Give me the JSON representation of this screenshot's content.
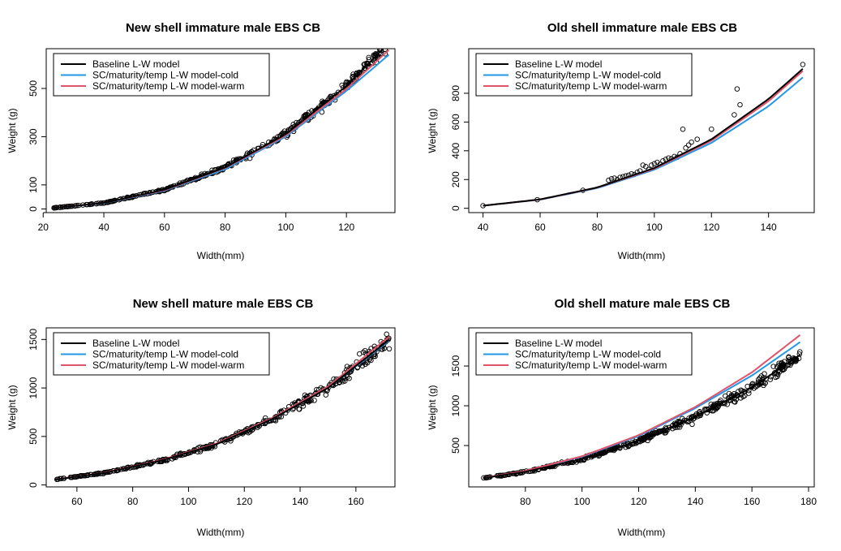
{
  "colors": {
    "baseline": "#000000",
    "cold": "#2297e6",
    "warm": "#df536b",
    "points": "#000000"
  },
  "chart_data": [
    {
      "type": "scatter",
      "title": "New shell immature male EBS CB",
      "xlabel": "Width(mm)",
      "ylabel": "Weight (g)",
      "xlim": [
        21,
        136
      ],
      "ylim": [
        -15,
        665
      ],
      "x_ticks": [
        20,
        40,
        60,
        80,
        100,
        120
      ],
      "y_ticks": [
        0,
        100,
        300,
        500
      ],
      "legend_position": "top-left",
      "series": [
        {
          "name": "Baseline L-W model",
          "color": "#000000",
          "x": [
            23,
            40,
            60,
            80,
            100,
            120,
            134
          ],
          "y": [
            4,
            25,
            80,
            172,
            310,
            510,
            690
          ]
        },
        {
          "name": "SC/maturity/temp L-W model-cold",
          "color": "#2297e6",
          "x": [
            23,
            40,
            60,
            80,
            100,
            120,
            134
          ],
          "y": [
            4,
            24,
            76,
            165,
            300,
            490,
            640
          ]
        },
        {
          "name": "SC/maturity/temp L-W model-warm",
          "color": "#df536b",
          "x": [
            23,
            40,
            60,
            80,
            100,
            120,
            134
          ],
          "y": [
            4,
            25,
            78,
            170,
            305,
            498,
            660
          ]
        }
      ],
      "points": {
        "xmin": 23,
        "xmax": 133,
        "n": 380,
        "scatter": 0.09
      }
    },
    {
      "type": "scatter",
      "title": "Old shell immature male EBS CB",
      "xlabel": "Width(mm)",
      "ylabel": "Weight (g)",
      "xlim": [
        35,
        156
      ],
      "ylim": [
        -30,
        1110
      ],
      "x_ticks": [
        40,
        60,
        80,
        100,
        120,
        140
      ],
      "y_ticks": [
        0,
        200,
        400,
        600,
        800
      ],
      "legend_position": "top-left",
      "series": [
        {
          "name": "Baseline L-W model",
          "color": "#000000",
          "x": [
            40,
            60,
            80,
            100,
            120,
            140,
            152
          ],
          "y": [
            18,
            62,
            145,
            280,
            480,
            760,
            970
          ]
        },
        {
          "name": "SC/maturity/temp L-W model-cold",
          "color": "#2297e6",
          "x": [
            40,
            60,
            80,
            100,
            120,
            140,
            152
          ],
          "y": [
            18,
            60,
            140,
            268,
            455,
            710,
            910
          ]
        },
        {
          "name": "SC/maturity/temp L-W model-warm",
          "color": "#df536b",
          "x": [
            40,
            60,
            80,
            100,
            120,
            140,
            152
          ],
          "y": [
            18,
            61,
            143,
            275,
            470,
            745,
            955
          ]
        }
      ],
      "points": {
        "x": [
          40,
          59,
          75,
          84,
          85,
          86,
          87,
          88,
          89,
          90,
          91,
          92,
          93,
          94,
          95,
          96,
          97,
          98,
          99,
          100,
          101,
          102,
          103,
          104,
          105,
          106,
          107,
          108,
          109,
          110,
          111,
          112,
          113,
          115,
          120,
          128,
          129,
          130,
          152
        ],
        "y": [
          18,
          60,
          125,
          195,
          205,
          210,
          200,
          215,
          220,
          225,
          230,
          240,
          235,
          250,
          260,
          300,
          290,
          270,
          300,
          310,
          320,
          305,
          330,
          340,
          350,
          345,
          360,
          355,
          380,
          550,
          420,
          440,
          460,
          480,
          550,
          650,
          830,
          720,
          1000
        ]
      }
    },
    {
      "type": "scatter",
      "title": "New shell mature male EBS CB",
      "xlabel": "Width(mm)",
      "ylabel": "Weight (g)",
      "xlim": [
        49,
        174
      ],
      "ylim": [
        -20,
        1620
      ],
      "x_ticks": [
        60,
        80,
        100,
        120,
        140,
        160
      ],
      "y_ticks": [
        0,
        500,
        1000,
        1500
      ],
      "legend_position": "top-left",
      "series": [
        {
          "name": "Baseline L-W model",
          "color": "#000000",
          "x": [
            52,
            70,
            90,
            110,
            130,
            150,
            172
          ],
          "y": [
            55,
            125,
            250,
            420,
            680,
            1000,
            1500
          ]
        },
        {
          "name": "SC/maturity/temp L-W model-cold",
          "color": "#2297e6",
          "x": [
            52,
            70,
            90,
            110,
            130,
            150,
            172
          ],
          "y": [
            55,
            125,
            250,
            420,
            680,
            1000,
            1490
          ]
        },
        {
          "name": "SC/maturity/temp L-W model-warm",
          "color": "#df536b",
          "x": [
            52,
            70,
            90,
            110,
            130,
            150,
            172
          ],
          "y": [
            56,
            127,
            255,
            428,
            690,
            1015,
            1530
          ]
        }
      ],
      "points": {
        "xmin": 52,
        "xmax": 172,
        "n": 360,
        "scatter": 0.1
      }
    },
    {
      "type": "scatter",
      "title": "Old shell mature male EBS CB",
      "xlabel": "Width(mm)",
      "ylabel": "Weight (g)",
      "xlim": [
        60,
        182
      ],
      "ylim": [
        -20,
        1980
      ],
      "x_ticks": [
        80,
        100,
        120,
        140,
        160,
        180
      ],
      "y_ticks": [
        500,
        1000,
        1500
      ],
      "legend_position": "top-left",
      "series": [
        {
          "name": "Baseline L-W model",
          "color": "#000000",
          "x": [
            65,
            80,
            100,
            120,
            140,
            160,
            177
          ],
          "y": [
            90,
            170,
            330,
            560,
            860,
            1230,
            1640
          ]
        },
        {
          "name": "SC/maturity/temp L-W model-cold",
          "color": "#2297e6",
          "x": [
            65,
            80,
            100,
            120,
            140,
            160,
            177
          ],
          "y": [
            92,
            180,
            360,
            620,
            970,
            1380,
            1800
          ]
        },
        {
          "name": "SC/maturity/temp L-W model-warm",
          "color": "#df536b",
          "x": [
            65,
            80,
            100,
            120,
            140,
            160,
            177
          ],
          "y": [
            92,
            182,
            365,
            630,
            985,
            1420,
            1890
          ]
        }
      ],
      "points": {
        "xmin": 65,
        "xmax": 177,
        "n": 420,
        "scatter": 0.1
      }
    }
  ]
}
